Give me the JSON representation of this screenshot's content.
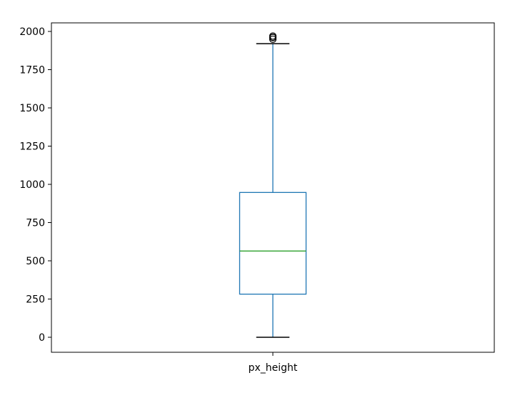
{
  "chart_data": {
    "type": "box",
    "title": "",
    "xlabel": "",
    "ylabel": "",
    "categories": [
      "px_height"
    ],
    "ylim": [
      -100,
      2050
    ],
    "yticks": [
      0,
      250,
      500,
      750,
      1000,
      1250,
      1500,
      1750,
      2000
    ],
    "ytick_labels": [
      "0",
      "250",
      "500",
      "750",
      "1000",
      "1250",
      "1500",
      "1750",
      "2000"
    ],
    "grid": false,
    "legend": "none",
    "boxes": [
      {
        "category": "px_height",
        "whisker_low": 0,
        "q1": 282,
        "median": 564,
        "q3": 947,
        "whisker_high": 1920,
        "outliers": [
          1949,
          1960,
          1962,
          1970
        ]
      }
    ],
    "colors": {
      "box": "#1f77b4",
      "whisker": "#1f77b4",
      "cap": "#000000",
      "median": "#2ca02c",
      "outlier": "#000000"
    }
  }
}
